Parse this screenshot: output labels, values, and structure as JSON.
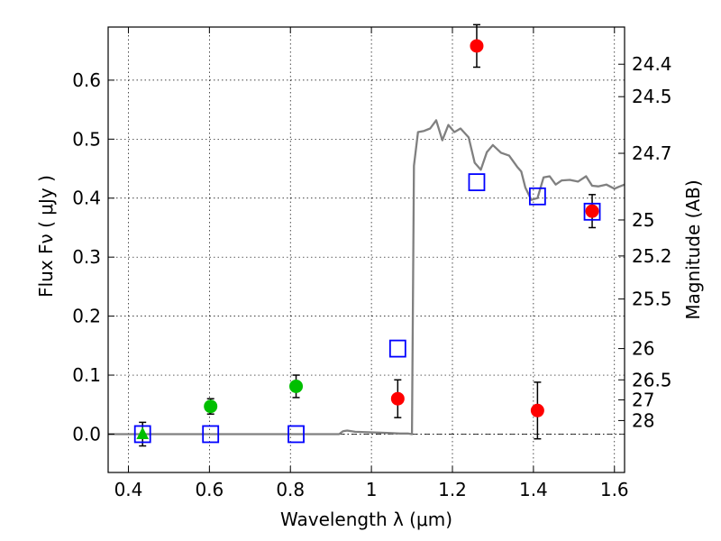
{
  "chart_data": {
    "type": "scatter",
    "xlabel": "Wavelength  λ (μm)",
    "ylabel": "Flux  Fν  ( μJy )",
    "y2label": "Magnitude (AB)",
    "xlim": [
      0.35,
      1.625
    ],
    "ylim": [
      -0.065,
      0.69
    ],
    "grid": true,
    "x_ticks": [
      0.4,
      0.6,
      0.8,
      1.0,
      1.2,
      1.4,
      1.6
    ],
    "x_tick_labels": [
      "0.4",
      "0.6",
      "0.8",
      "1",
      "1.2",
      "1.4",
      "1.6"
    ],
    "y_ticks": [
      0.0,
      0.1,
      0.2,
      0.3,
      0.4,
      0.5,
      0.6
    ],
    "y_tick_labels": [
      "0.0",
      "0.1",
      "0.2",
      "0.3",
      "0.4",
      "0.5",
      "0.6"
    ],
    "right_axis_ticks": [
      {
        "label": "24.4",
        "flux": 0.627
      },
      {
        "label": "24.5",
        "flux": 0.572
      },
      {
        "label": "24.7",
        "flux": 0.476
      },
      {
        "label": "25",
        "flux": 0.363
      },
      {
        "label": "25.2",
        "flux": 0.302
      },
      {
        "label": "25.5",
        "flux": 0.229
      },
      {
        "label": "26",
        "flux": 0.145
      },
      {
        "label": "26.5",
        "flux": 0.092
      },
      {
        "label": "27",
        "flux": 0.058
      },
      {
        "label": "28",
        "flux": 0.023
      }
    ],
    "series": [
      {
        "kind": "model-line",
        "color": "#808080",
        "x": [
          0.35,
          0.92,
          0.93,
          0.94,
          0.96,
          1.0,
          1.04,
          1.07,
          1.09,
          1.1,
          1.105,
          1.115,
          1.13,
          1.145,
          1.16,
          1.175,
          1.19,
          1.205,
          1.22,
          1.24,
          1.255,
          1.27,
          1.285,
          1.3,
          1.32,
          1.34,
          1.36,
          1.37,
          1.38,
          1.395,
          1.41,
          1.425,
          1.44,
          1.455,
          1.47,
          1.49,
          1.51,
          1.53,
          1.545,
          1.56,
          1.58,
          1.6,
          1.61,
          1.625
        ],
        "y": [
          0.0,
          0.0,
          0.005,
          0.006,
          0.004,
          0.003,
          0.002,
          0.001,
          0.001,
          0.0,
          0.455,
          0.512,
          0.514,
          0.518,
          0.532,
          0.498,
          0.524,
          0.512,
          0.518,
          0.503,
          0.46,
          0.448,
          0.478,
          0.49,
          0.477,
          0.472,
          0.453,
          0.445,
          0.418,
          0.397,
          0.4,
          0.435,
          0.437,
          0.423,
          0.43,
          0.431,
          0.428,
          0.437,
          0.421,
          0.42,
          0.423,
          0.416,
          0.419,
          0.423
        ]
      },
      {
        "kind": "red-circles",
        "color": "#ff0000",
        "points": [
          {
            "x": 1.065,
            "y": 0.06,
            "err": 0.032
          },
          {
            "x": 1.26,
            "y": 0.658,
            "err": 0.036
          },
          {
            "x": 1.41,
            "y": 0.04,
            "err": 0.048
          },
          {
            "x": 1.545,
            "y": 0.378,
            "err": 0.028
          }
        ]
      },
      {
        "kind": "green-circles",
        "color": "#00bf00",
        "points": [
          {
            "x": 0.603,
            "y": 0.047,
            "err": 0.013
          },
          {
            "x": 0.814,
            "y": 0.081,
            "err": 0.019
          }
        ]
      },
      {
        "kind": "green-triangle",
        "color": "#00bf00",
        "points": [
          {
            "x": 0.435,
            "y": 0.0,
            "err": 0.02
          }
        ]
      },
      {
        "kind": "blue-squares",
        "color": "#0000ff",
        "points": [
          {
            "x": 0.435,
            "y": 0.0
          },
          {
            "x": 0.603,
            "y": 0.0
          },
          {
            "x": 0.814,
            "y": 0.0
          },
          {
            "x": 1.065,
            "y": 0.145
          },
          {
            "x": 1.26,
            "y": 0.427
          },
          {
            "x": 1.41,
            "y": 0.403
          },
          {
            "x": 1.545,
            "y": 0.377
          }
        ]
      }
    ]
  }
}
